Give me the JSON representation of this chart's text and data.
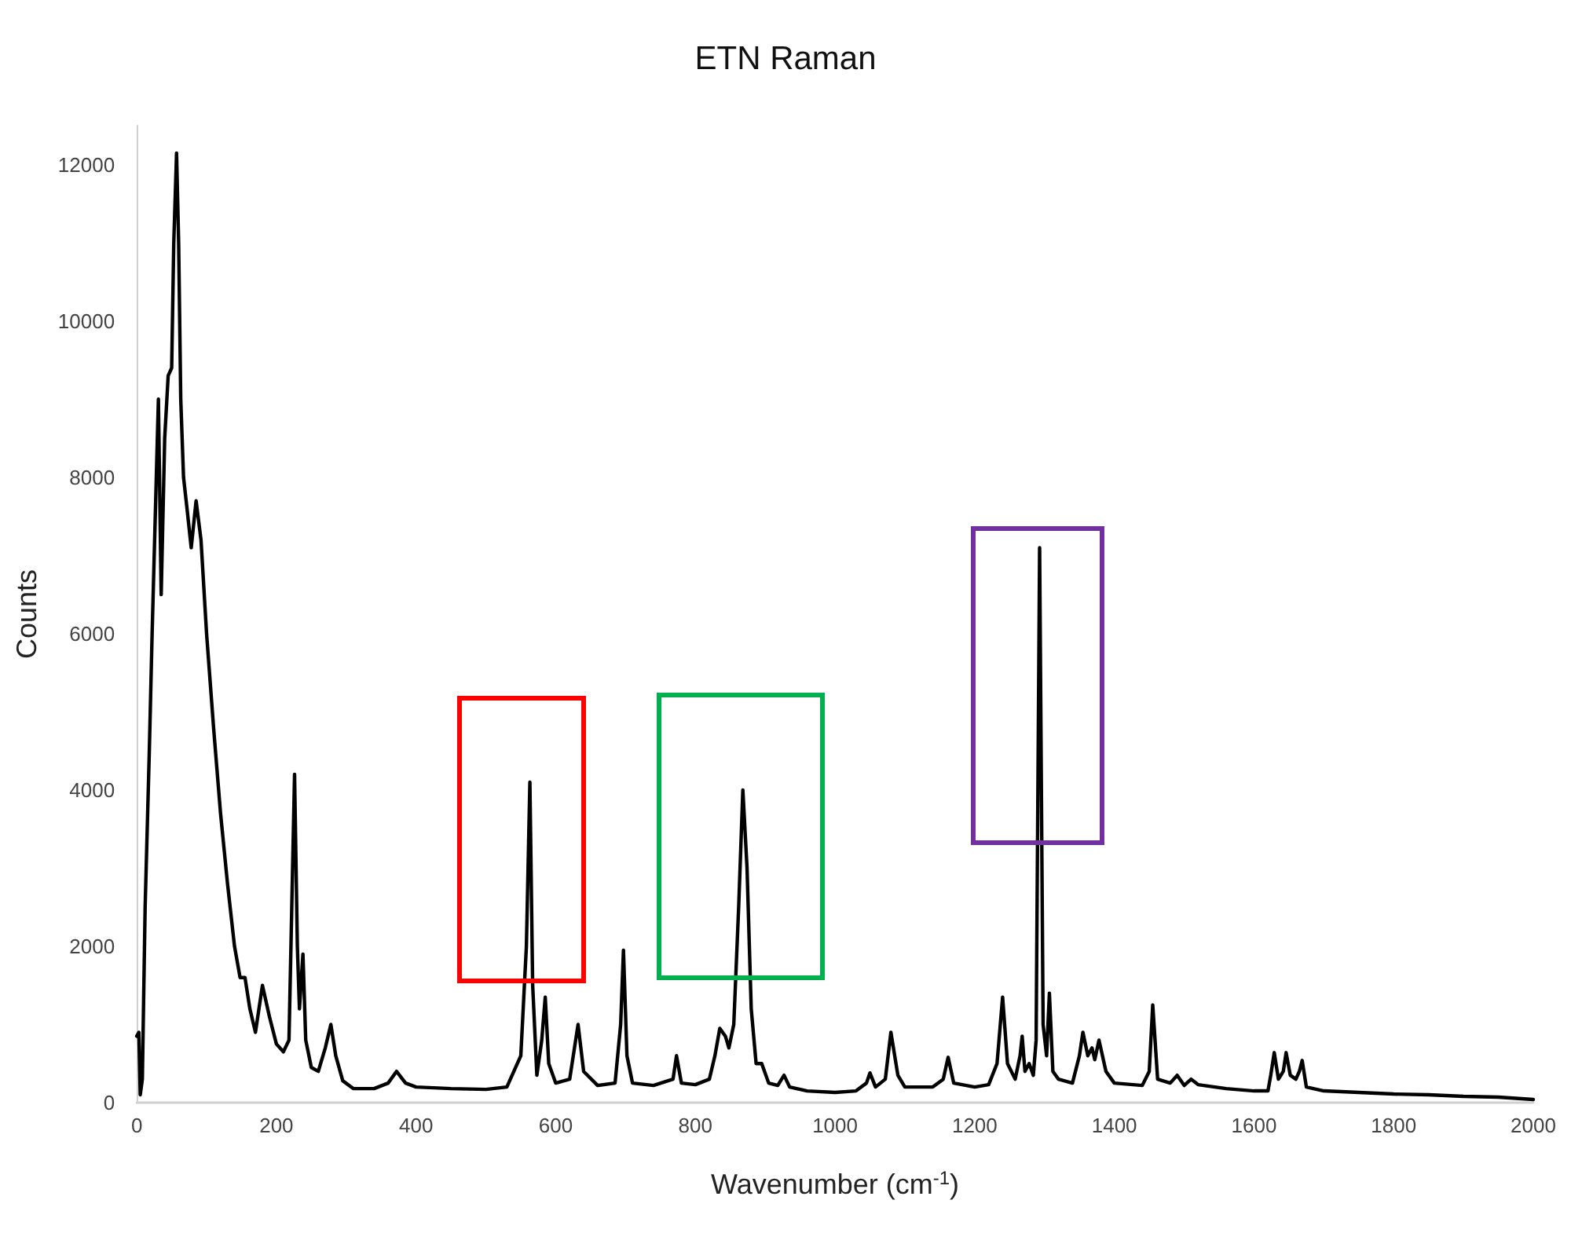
{
  "chart_data": {
    "type": "line",
    "title": "ETN Raman",
    "xlabel": "Wavenumber (cm$^{-1}$)",
    "ylabel": "Counts",
    "xlim": [
      0,
      2000
    ],
    "xticks": [
      0,
      200,
      400,
      600,
      800,
      1000,
      1200,
      1400,
      1600,
      1800,
      2000
    ],
    "ylim": [
      0,
      12500
    ],
    "yticks": [
      0,
      2000,
      4000,
      6000,
      8000,
      10000,
      12000
    ],
    "grid": false,
    "marker": "none",
    "line_style": "solid",
    "series": [
      {
        "color": "#000000",
        "x": [
          0,
          3,
          5,
          8,
          12,
          18,
          22,
          28,
          31,
          35,
          40,
          45,
          50,
          53,
          57,
          60,
          63,
          67,
          72,
          78,
          85,
          92,
          100,
          110,
          120,
          130,
          140,
          148,
          155,
          162,
          170,
          180,
          190,
          200,
          210,
          218,
          222,
          226,
          230,
          233,
          238,
          242,
          250,
          260,
          270,
          278,
          285,
          295,
          310,
          340,
          360,
          372,
          385,
          400,
          450,
          500,
          530,
          550,
          558,
          563,
          567,
          573,
          580,
          585,
          590,
          600,
          620,
          632,
          640,
          660,
          685,
          693,
          697,
          702,
          710,
          740,
          768,
          773,
          780,
          800,
          820,
          828,
          835,
          843,
          848,
          855,
          862,
          868,
          874,
          880,
          887,
          895,
          905,
          918,
          927,
          935,
          960,
          1000,
          1030,
          1045,
          1050,
          1058,
          1072,
          1080,
          1090,
          1100,
          1140,
          1155,
          1162,
          1170,
          1200,
          1220,
          1232,
          1240,
          1247,
          1258,
          1265,
          1268,
          1272,
          1278,
          1284,
          1288,
          1293,
          1298,
          1303,
          1307,
          1312,
          1320,
          1340,
          1350,
          1355,
          1362,
          1368,
          1372,
          1378,
          1388,
          1400,
          1440,
          1450,
          1455,
          1462,
          1480,
          1490,
          1500,
          1510,
          1520,
          1560,
          1600,
          1620,
          1624,
          1629,
          1635,
          1642,
          1646,
          1652,
          1660,
          1665,
          1669,
          1675,
          1700,
          1750,
          1800,
          1850,
          1900,
          1950,
          2000
        ],
        "values": [
          850,
          900,
          100,
          300,
          2500,
          4500,
          6000,
          8000,
          9000,
          6500,
          8500,
          9300,
          9400,
          11000,
          12150,
          11000,
          9000,
          8000,
          7600,
          7100,
          7700,
          7200,
          6000,
          4800,
          3700,
          2800,
          2000,
          1600,
          1600,
          1200,
          900,
          1500,
          1100,
          750,
          650,
          800,
          2500,
          4200,
          2000,
          1200,
          1900,
          800,
          450,
          400,
          700,
          1000,
          600,
          280,
          180,
          180,
          250,
          400,
          250,
          200,
          180,
          170,
          200,
          600,
          2000,
          4100,
          1500,
          350,
          800,
          1350,
          500,
          250,
          300,
          1000,
          400,
          220,
          250,
          1000,
          1950,
          600,
          250,
          220,
          300,
          600,
          250,
          230,
          300,
          600,
          950,
          850,
          700,
          1000,
          2500,
          4000,
          3000,
          1200,
          500,
          500,
          250,
          220,
          350,
          200,
          150,
          130,
          150,
          250,
          380,
          200,
          300,
          900,
          350,
          200,
          200,
          300,
          580,
          250,
          200,
          230,
          500,
          1350,
          500,
          300,
          600,
          850,
          400,
          500,
          350,
          800,
          7100,
          1000,
          600,
          1400,
          400,
          300,
          250,
          600,
          900,
          600,
          700,
          550,
          800,
          400,
          250,
          220,
          400,
          1250,
          300,
          250,
          350,
          220,
          300,
          230,
          180,
          150,
          150,
          350,
          640,
          300,
          400,
          640,
          350,
          300,
          400,
          540,
          200,
          150,
          130,
          110,
          100,
          80,
          70,
          40
        ]
      }
    ]
  }
}
